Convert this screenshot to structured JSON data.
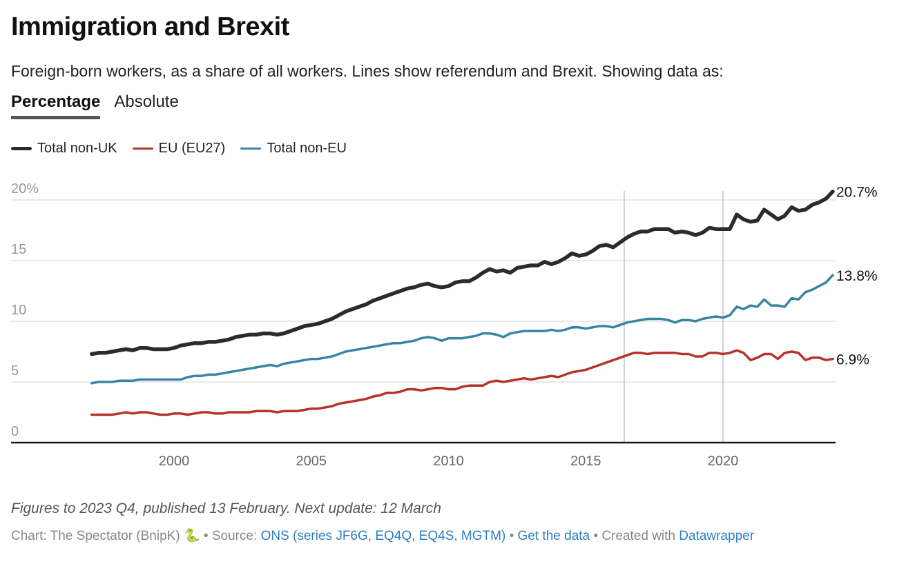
{
  "header": {
    "title": "Immigration and Brexit",
    "subtitle": "Foreign-born workers, as a share of all workers. Lines show referendum and Brexit. Showing data as:"
  },
  "toggles": [
    {
      "label": "Percentage",
      "active": true
    },
    {
      "label": "Absolute",
      "active": false
    }
  ],
  "legend": [
    {
      "label": "Total non-UK",
      "color": "#2b2b2b"
    },
    {
      "label": "EU (EU27)",
      "color": "#b9312c"
    },
    {
      "label": "Total non-EU",
      "color": "#3a84a3"
    }
  ],
  "chart_data": {
    "type": "line",
    "title": "Immigration and Brexit",
    "xlabel": "",
    "ylabel": "",
    "x_start": 1997.0,
    "x_step": 0.25,
    "xlim": [
      1994,
      2024
    ],
    "ylim": [
      0,
      20
    ],
    "y_ticks": [
      {
        "value": 0,
        "label": "0"
      },
      {
        "value": 5,
        "label": "5"
      },
      {
        "value": 10,
        "label": "10"
      },
      {
        "value": 15,
        "label": "15"
      },
      {
        "value": 20,
        "label": "20%"
      }
    ],
    "x_ticks": [
      {
        "value": 2000,
        "label": "2000"
      },
      {
        "value": 2005,
        "label": "2005"
      },
      {
        "value": 2010,
        "label": "2010"
      },
      {
        "value": 2015,
        "label": "2015"
      },
      {
        "value": 2020,
        "label": "2020"
      }
    ],
    "grid": true,
    "annotations": [
      {
        "type": "vline",
        "x": 2016.4,
        "label": "EU referendum"
      },
      {
        "type": "vline",
        "x": 2020.0,
        "label": "Brexit"
      }
    ],
    "series": [
      {
        "name": "Total non-UK",
        "color": "#2b2b2b",
        "end_label": "20.7%",
        "values": [
          7.3,
          7.4,
          7.4,
          7.5,
          7.6,
          7.7,
          7.6,
          7.8,
          7.8,
          7.7,
          7.7,
          7.7,
          7.8,
          8.0,
          8.1,
          8.2,
          8.2,
          8.3,
          8.3,
          8.4,
          8.5,
          8.7,
          8.8,
          8.9,
          8.9,
          9.0,
          9.0,
          8.9,
          9.0,
          9.2,
          9.4,
          9.6,
          9.7,
          9.8,
          10.0,
          10.2,
          10.5,
          10.8,
          11.0,
          11.2,
          11.4,
          11.7,
          11.9,
          12.1,
          12.3,
          12.5,
          12.7,
          12.8,
          13.0,
          13.1,
          12.9,
          12.8,
          12.9,
          13.2,
          13.3,
          13.3,
          13.6,
          14.0,
          14.3,
          14.1,
          14.2,
          14.0,
          14.4,
          14.5,
          14.6,
          14.6,
          14.9,
          14.7,
          14.9,
          15.2,
          15.6,
          15.4,
          15.5,
          15.8,
          16.2,
          16.3,
          16.1,
          16.5,
          16.9,
          17.2,
          17.4,
          17.4,
          17.6,
          17.6,
          17.6,
          17.3,
          17.4,
          17.3,
          17.1,
          17.3,
          17.7,
          17.6,
          17.6,
          17.6,
          18.8,
          18.4,
          18.2,
          18.3,
          19.2,
          18.8,
          18.4,
          18.7,
          19.4,
          19.1,
          19.2,
          19.6,
          19.8,
          20.1,
          20.7
        ]
      },
      {
        "name": "EU (EU27)",
        "color": "#b9312c",
        "end_label": "6.9%",
        "values": [
          2.3,
          2.3,
          2.3,
          2.3,
          2.4,
          2.5,
          2.4,
          2.5,
          2.5,
          2.4,
          2.3,
          2.3,
          2.4,
          2.4,
          2.3,
          2.4,
          2.5,
          2.5,
          2.4,
          2.4,
          2.5,
          2.5,
          2.5,
          2.5,
          2.6,
          2.6,
          2.6,
          2.5,
          2.6,
          2.6,
          2.6,
          2.7,
          2.8,
          2.8,
          2.9,
          3.0,
          3.2,
          3.3,
          3.4,
          3.5,
          3.6,
          3.8,
          3.9,
          4.1,
          4.1,
          4.2,
          4.4,
          4.4,
          4.3,
          4.4,
          4.5,
          4.5,
          4.4,
          4.4,
          4.6,
          4.7,
          4.7,
          4.7,
          5.0,
          5.1,
          5.0,
          5.1,
          5.2,
          5.3,
          5.2,
          5.3,
          5.4,
          5.5,
          5.4,
          5.6,
          5.8,
          5.9,
          6.0,
          6.2,
          6.4,
          6.6,
          6.8,
          7.0,
          7.2,
          7.4,
          7.4,
          7.3,
          7.4,
          7.4,
          7.4,
          7.4,
          7.3,
          7.3,
          7.1,
          7.1,
          7.4,
          7.4,
          7.3,
          7.4,
          7.6,
          7.4,
          6.8,
          7.0,
          7.3,
          7.3,
          6.9,
          7.4,
          7.5,
          7.4,
          6.8,
          7.0,
          7.0,
          6.8,
          6.9
        ]
      },
      {
        "name": "Total non-EU",
        "color": "#3a84a3",
        "end_label": "13.8%",
        "values": [
          4.9,
          5.0,
          5.0,
          5.0,
          5.1,
          5.1,
          5.1,
          5.2,
          5.2,
          5.2,
          5.2,
          5.2,
          5.2,
          5.2,
          5.4,
          5.5,
          5.5,
          5.6,
          5.6,
          5.7,
          5.8,
          5.9,
          6.0,
          6.1,
          6.2,
          6.3,
          6.4,
          6.3,
          6.5,
          6.6,
          6.7,
          6.8,
          6.9,
          6.9,
          7.0,
          7.1,
          7.3,
          7.5,
          7.6,
          7.7,
          7.8,
          7.9,
          8.0,
          8.1,
          8.2,
          8.2,
          8.3,
          8.4,
          8.6,
          8.7,
          8.6,
          8.4,
          8.6,
          8.6,
          8.6,
          8.7,
          8.8,
          9.0,
          9.0,
          8.9,
          8.7,
          9.0,
          9.1,
          9.2,
          9.2,
          9.2,
          9.2,
          9.3,
          9.2,
          9.3,
          9.5,
          9.5,
          9.4,
          9.5,
          9.6,
          9.6,
          9.5,
          9.7,
          9.9,
          10.0,
          10.1,
          10.2,
          10.2,
          10.2,
          10.1,
          9.9,
          10.1,
          10.1,
          10.0,
          10.2,
          10.3,
          10.4,
          10.3,
          10.5,
          11.2,
          11.0,
          11.3,
          11.2,
          11.8,
          11.3,
          11.3,
          11.2,
          11.9,
          11.8,
          12.4,
          12.6,
          12.9,
          13.2,
          13.8
        ]
      }
    ]
  },
  "notes": "Figures to 2023 Q4, published 13 February. Next update: 12 March",
  "footer": {
    "chart_prefix": "Chart: The Spectator (BnipK)",
    "snake_icon": "🐍",
    "source_prefix": " • Source: ",
    "source_link": "ONS (series JF6G, EQ4Q, EQ4S, MGTM)",
    "sep1": " • ",
    "data_link": "Get the data",
    "created_prefix": " • Created with ",
    "created_link": "Datawrapper"
  }
}
